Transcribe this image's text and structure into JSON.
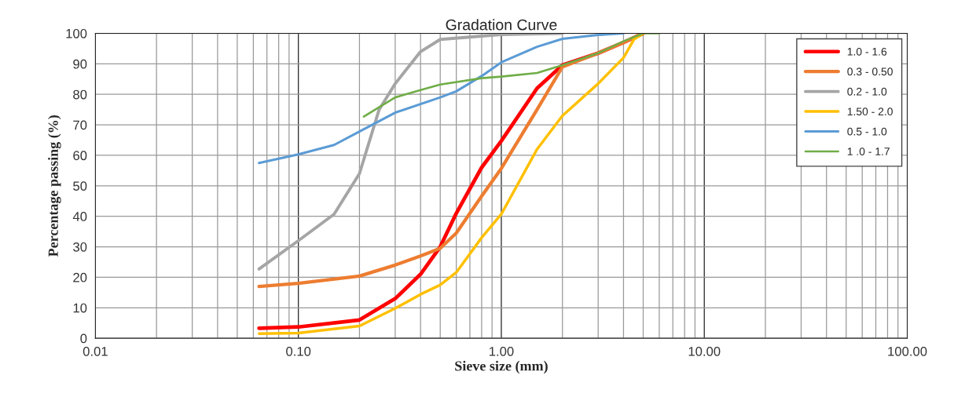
{
  "chart_data": {
    "type": "line",
    "title": "Gradation Curve",
    "xlabel": "Sieve size (mm)",
    "ylabel": "Percentage passing (%)",
    "log": "x",
    "grid": true,
    "legend": "top right",
    "marker": "none",
    "line_style": "solid",
    "xlim": [
      0.01,
      100
    ],
    "xticks": [
      {
        "value": 0.01,
        "label": "0.01"
      },
      {
        "value": 0.1,
        "label": "0.10"
      },
      {
        "value": 1,
        "label": "1.00"
      },
      {
        "value": 10,
        "label": "10.00"
      },
      {
        "value": 100,
        "label": "100.00"
      }
    ],
    "ylim": [
      0,
      100
    ],
    "yticks": [
      0,
      10,
      20,
      30,
      40,
      50,
      60,
      70,
      80,
      90,
      100
    ],
    "series": [
      {
        "name": "1.0 - 1.6",
        "color": "#ff0000",
        "x": [
          0.064,
          0.1,
          0.2,
          0.3,
          0.4,
          0.5,
          0.6,
          0.8,
          1.0,
          1.5,
          2,
          3,
          4,
          5
        ],
        "values": [
          3.3,
          3.7,
          6,
          13,
          21,
          30,
          41,
          56,
          64.7,
          82,
          89.6,
          93.5,
          97,
          100
        ]
      },
      {
        "name": "0.3 - 0.50",
        "color": "#ed7d31",
        "x": [
          0.064,
          0.1,
          0.2,
          0.3,
          0.4,
          0.5,
          0.6,
          0.8,
          1.0,
          1.5,
          2,
          3,
          4,
          5
        ],
        "values": [
          17,
          18,
          20.4,
          24,
          27,
          29.5,
          34.5,
          46.6,
          55.7,
          75,
          89,
          93.5,
          97,
          100
        ]
      },
      {
        "name": "0.2 - 1.0",
        "color": "#a5a5a5",
        "x": [
          0.064,
          0.1,
          0.15,
          0.2,
          0.25,
          0.3,
          0.4,
          0.5,
          1.0,
          2
        ],
        "values": [
          22.7,
          32,
          40.7,
          54,
          75,
          83.5,
          94,
          98,
          99.6,
          100
        ]
      },
      {
        "name": "1.50 - 2.0",
        "color": "#ffc000",
        "x": [
          0.064,
          0.1,
          0.2,
          0.3,
          0.4,
          0.5,
          0.6,
          0.8,
          1.0,
          1.5,
          2,
          3,
          4,
          4.5,
          5
        ],
        "values": [
          1.5,
          1.7,
          4,
          9.8,
          14.4,
          17.5,
          21.6,
          33,
          40.7,
          62,
          73,
          83.5,
          92,
          98,
          100
        ]
      },
      {
        "name": "0.5 - 1.0",
        "color": "#5b9bd5",
        "x": [
          0.064,
          0.1,
          0.15,
          0.2,
          0.3,
          0.5,
          0.6,
          0.8,
          1.0,
          1.5,
          2,
          3,
          4
        ],
        "values": [
          57.5,
          60.3,
          63.4,
          67.8,
          74,
          79,
          81,
          86,
          90.5,
          95.6,
          98.2,
          99.5,
          100
        ]
      },
      {
        "name": "1 .0 - 1.7",
        "color": "#70ad47",
        "x": [
          0.21,
          0.3,
          0.4,
          0.5,
          0.8,
          1.0,
          1.5,
          2,
          3,
          4,
          5,
          6
        ],
        "values": [
          72.7,
          79,
          81.4,
          83.2,
          85.3,
          85.8,
          87,
          89.6,
          93.5,
          97.4,
          100,
          100
        ]
      }
    ]
  }
}
